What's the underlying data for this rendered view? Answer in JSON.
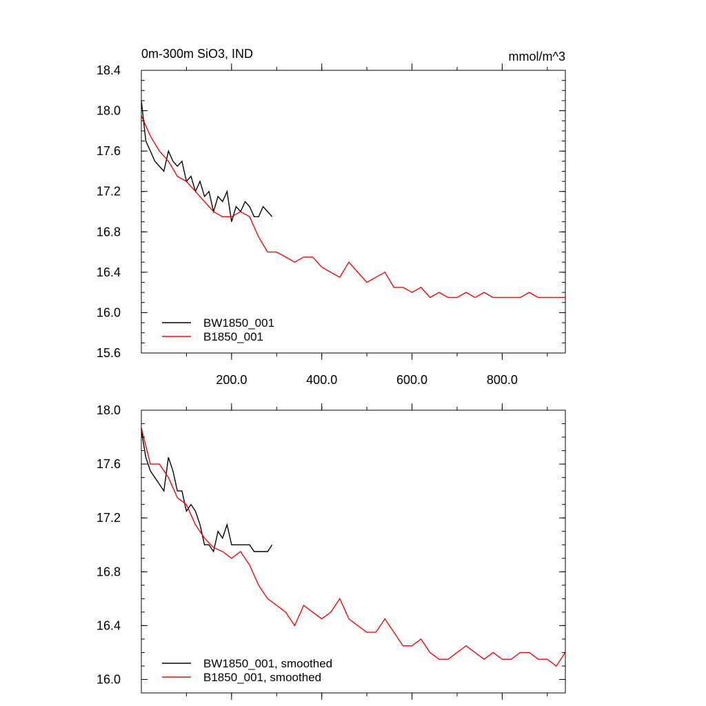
{
  "chart_data": [
    {
      "type": "line",
      "title": "0m-300m SiO3, IND",
      "units": "mmol/m^3",
      "xlabel": "",
      "ylabel": "",
      "xlim": [
        0,
        940
      ],
      "ylim": [
        15.6,
        18.4
      ],
      "x_ticks": [
        200,
        400,
        600,
        800
      ],
      "x_tick_labels": [
        "200.0",
        "400.0",
        "600.0",
        "800.0"
      ],
      "y_ticks": [
        15.6,
        16.0,
        16.4,
        16.8,
        17.2,
        17.6,
        18.0,
        18.4
      ],
      "y_tick_labels": [
        "15.6",
        "16.0",
        "16.4",
        "16.8",
        "17.2",
        "17.6",
        "18.0",
        "18.4"
      ],
      "legend_position": "bottom-left",
      "series": [
        {
          "name": "BW1850_001",
          "color": "#000000",
          "x": [
            0,
            10,
            20,
            30,
            40,
            50,
            60,
            70,
            80,
            90,
            100,
            110,
            120,
            130,
            140,
            150,
            160,
            170,
            180,
            190,
            200,
            210,
            220,
            230,
            240,
            250,
            260,
            270,
            280,
            290
          ],
          "values": [
            18.1,
            17.7,
            17.6,
            17.5,
            17.45,
            17.4,
            17.6,
            17.5,
            17.45,
            17.5,
            17.3,
            17.35,
            17.2,
            17.3,
            17.15,
            17.2,
            17.0,
            17.15,
            17.1,
            17.2,
            16.9,
            17.05,
            17.0,
            17.1,
            17.05,
            16.95,
            16.95,
            17.05,
            17.0,
            16.95
          ]
        },
        {
          "name": "B1850_001",
          "color": "#ff0000",
          "x": [
            0,
            20,
            40,
            60,
            80,
            100,
            120,
            140,
            160,
            180,
            200,
            220,
            240,
            260,
            280,
            300,
            320,
            340,
            360,
            380,
            400,
            420,
            440,
            460,
            480,
            500,
            520,
            540,
            560,
            580,
            600,
            620,
            640,
            660,
            680,
            700,
            720,
            740,
            760,
            780,
            800,
            820,
            840,
            860,
            880,
            900,
            920,
            940
          ],
          "values": [
            17.95,
            17.75,
            17.6,
            17.5,
            17.35,
            17.3,
            17.2,
            17.1,
            17.0,
            16.95,
            16.95,
            17.0,
            16.95,
            16.75,
            16.6,
            16.6,
            16.55,
            16.5,
            16.55,
            16.55,
            16.45,
            16.4,
            16.35,
            16.5,
            16.4,
            16.3,
            16.35,
            16.4,
            16.25,
            16.25,
            16.2,
            16.25,
            16.15,
            16.2,
            16.15,
            16.15,
            16.2,
            16.15,
            16.2,
            16.15,
            16.15,
            16.15,
            16.15,
            16.2,
            16.15,
            16.15,
            16.15,
            16.15
          ]
        }
      ]
    },
    {
      "type": "line",
      "title": "",
      "xlabel": "",
      "ylabel": "",
      "xlim": [
        0,
        940
      ],
      "ylim": [
        15.9,
        18.0
      ],
      "x_ticks": [
        200,
        400,
        600,
        800
      ],
      "y_ticks": [
        16.0,
        16.4,
        16.8,
        17.2,
        17.6,
        18.0
      ],
      "y_tick_labels": [
        "16.0",
        "16.4",
        "16.8",
        "17.2",
        "17.6",
        "18.0"
      ],
      "legend_position": "bottom-left",
      "series": [
        {
          "name": "BW1850_001, smoothed",
          "color": "#000000",
          "x": [
            0,
            10,
            20,
            30,
            40,
            50,
            60,
            70,
            80,
            90,
            100,
            110,
            120,
            130,
            140,
            150,
            160,
            170,
            180,
            190,
            200,
            210,
            220,
            230,
            240,
            250,
            260,
            270,
            280,
            290
          ],
          "values": [
            17.85,
            17.65,
            17.55,
            17.5,
            17.45,
            17.4,
            17.65,
            17.55,
            17.4,
            17.4,
            17.25,
            17.3,
            17.25,
            17.15,
            17.0,
            17.0,
            16.95,
            17.1,
            17.05,
            17.15,
            17.0,
            17.0,
            17.0,
            17.0,
            17.0,
            16.95,
            16.95,
            16.95,
            16.95,
            17.0
          ]
        },
        {
          "name": "B1850_001, smoothed",
          "color": "#ff0000",
          "x": [
            0,
            20,
            40,
            60,
            80,
            100,
            120,
            140,
            160,
            180,
            200,
            220,
            240,
            260,
            280,
            300,
            320,
            340,
            360,
            380,
            400,
            420,
            440,
            460,
            480,
            500,
            520,
            540,
            560,
            580,
            600,
            620,
            640,
            660,
            680,
            700,
            720,
            740,
            760,
            780,
            800,
            820,
            840,
            860,
            880,
            900,
            920,
            940
          ],
          "values": [
            17.87,
            17.6,
            17.6,
            17.5,
            17.35,
            17.3,
            17.15,
            17.05,
            16.98,
            16.95,
            16.9,
            16.95,
            16.85,
            16.7,
            16.6,
            16.55,
            16.5,
            16.4,
            16.55,
            16.5,
            16.45,
            16.5,
            16.6,
            16.45,
            16.4,
            16.35,
            16.35,
            16.45,
            16.35,
            16.25,
            16.25,
            16.3,
            16.2,
            16.15,
            16.15,
            16.2,
            16.25,
            16.2,
            16.15,
            16.2,
            16.15,
            16.15,
            16.2,
            16.2,
            16.15,
            16.15,
            16.1,
            16.2
          ]
        }
      ]
    }
  ]
}
